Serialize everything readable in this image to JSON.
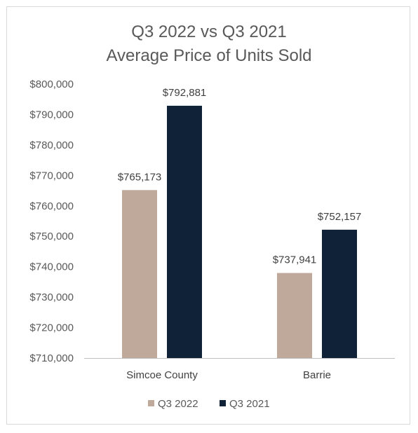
{
  "chart_data": {
    "type": "bar",
    "title": [
      "Q3 2022 vs Q3 2021",
      "Average Price of Units Sold"
    ],
    "categories": [
      "Simcoe County",
      "Barrie"
    ],
    "series": [
      {
        "name": "Q3 2022",
        "values": [
          765173,
          737941
        ],
        "labels": [
          "$765,173",
          "$737,941"
        ],
        "color": "#bfa99a"
      },
      {
        "name": "Q3 2021",
        "values": [
          792881,
          752157
        ],
        "labels": [
          "$792,881",
          "$752,157"
        ],
        "color": "#0f2237"
      }
    ],
    "ylim": [
      710000,
      800000
    ],
    "yticks": [
      800000,
      790000,
      780000,
      770000,
      760000,
      750000,
      740000,
      730000,
      720000,
      710000
    ],
    "ytick_labels": [
      "$800,000",
      "$790,000",
      "$780,000",
      "$770,000",
      "$760,000",
      "$750,000",
      "$740,000",
      "$730,000",
      "$720,000",
      "$710,000"
    ],
    "grid": false,
    "legend": "bottom"
  }
}
